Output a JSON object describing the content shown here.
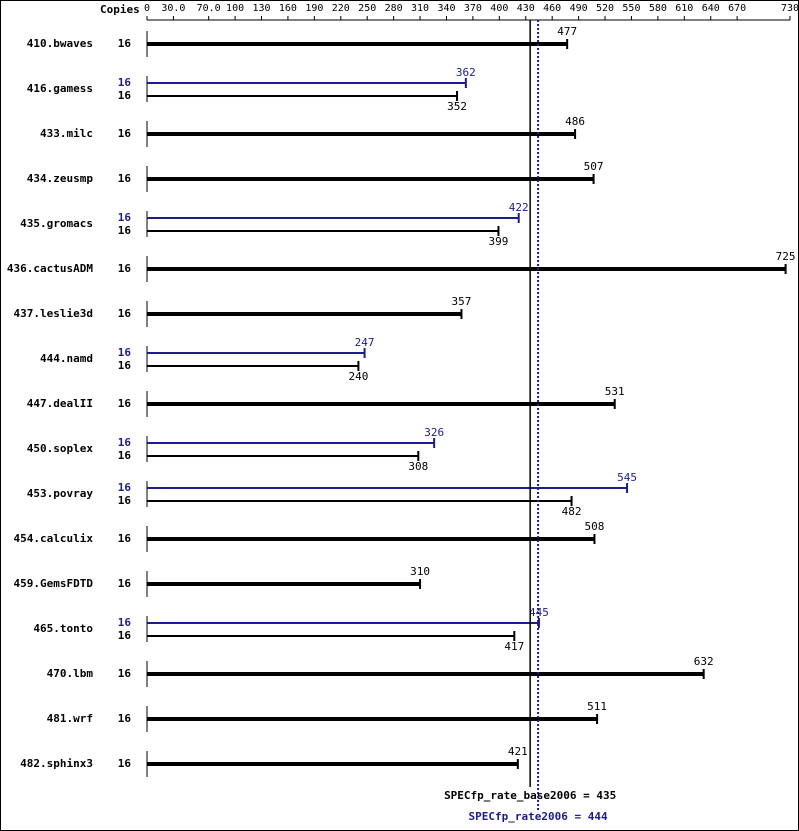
{
  "chart_data": {
    "type": "bar",
    "orientation": "horizontal",
    "axis_title": "Copies",
    "categories": [
      "410.bwaves",
      "416.gamess",
      "433.milc",
      "434.zeusmp",
      "435.gromacs",
      "436.cactusADM",
      "437.leslie3d",
      "444.namd",
      "447.dealII",
      "450.soplex",
      "453.povray",
      "454.calculix",
      "459.GemsFDTD",
      "465.tonto",
      "470.lbm",
      "481.wrf",
      "482.sphinx3"
    ],
    "series": [
      {
        "name": "SPECfp_rate2006",
        "color": "#1c1c8c",
        "copies": [
          null,
          16,
          null,
          null,
          16,
          null,
          null,
          16,
          null,
          16,
          16,
          null,
          null,
          16,
          null,
          null,
          null
        ],
        "values": [
          null,
          362,
          null,
          null,
          422,
          null,
          null,
          247,
          null,
          326,
          545,
          null,
          null,
          445,
          null,
          null,
          null
        ]
      },
      {
        "name": "SPECfp_rate_base2006",
        "color": "#000000",
        "copies": [
          16,
          16,
          16,
          16,
          16,
          16,
          16,
          16,
          16,
          16,
          16,
          16,
          16,
          16,
          16,
          16,
          16
        ],
        "values": [
          477,
          352,
          486,
          507,
          399,
          725,
          357,
          240,
          531,
          308,
          482,
          508,
          310,
          417,
          632,
          511,
          421
        ]
      }
    ],
    "reference_lines": [
      {
        "label": "SPECfp_rate_base2006 = 435",
        "value": 435,
        "color": "#000000",
        "style": "solid"
      },
      {
        "label": "SPECfp_rate2006 = 444",
        "value": 444,
        "color": "#1c1c8c",
        "style": "dotted"
      }
    ],
    "xlim": [
      0,
      730
    ],
    "xticks": [
      0,
      {
        "value": 30,
        "label": "30.0"
      },
      {
        "value": 70,
        "label": "70.0"
      },
      100,
      130,
      160,
      190,
      220,
      250,
      280,
      310,
      340,
      370,
      400,
      430,
      460,
      490,
      520,
      550,
      580,
      610,
      640,
      670,
      730
    ]
  }
}
